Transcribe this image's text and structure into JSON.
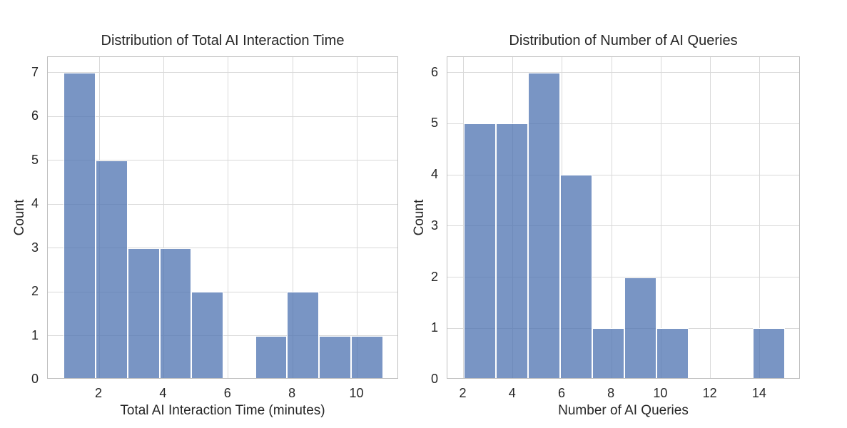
{
  "figure": {
    "background_color": "#ffffff"
  },
  "style": {
    "bar_fill_color": "#4C72B0",
    "bar_fill_alpha": 0.75,
    "bar_fill_rgba": "rgba(76,114,176,0.75)",
    "bar_edge_color": "#ffffff",
    "grid_color": "#d9d9d9",
    "spine_color": "#bfbfbf",
    "text_color": "#262626"
  },
  "chart_data": [
    {
      "type": "bar",
      "subtype": "histogram",
      "title": "Distribution of Total AI Interaction Time",
      "xlabel": "Total AI Interaction Time (minutes)",
      "ylabel": "Count",
      "bin_edges": [
        0.9,
        1.89,
        2.88,
        3.87,
        4.86,
        5.85,
        6.84,
        7.83,
        8.82,
        9.81,
        10.8
      ],
      "counts": [
        7,
        5,
        3,
        3,
        2,
        0,
        1,
        2,
        1,
        1
      ],
      "xticks": [
        2,
        4,
        6,
        8,
        10
      ],
      "yticks": [
        0,
        1,
        2,
        3,
        4,
        5,
        6,
        7
      ],
      "xlim": [
        0.405,
        11.295
      ],
      "ylim": [
        0,
        7.35
      ],
      "grid": true,
      "legend": null
    },
    {
      "type": "bar",
      "subtype": "histogram",
      "title": "Distribution of Number of AI Queries",
      "xlabel": "Number of AI Queries",
      "ylabel": "Count",
      "bin_edges": [
        2.0,
        3.3,
        4.6,
        5.9,
        7.2,
        8.5,
        9.8,
        11.1,
        12.4,
        13.7,
        15.0
      ],
      "counts": [
        5,
        5,
        6,
        4,
        1,
        2,
        1,
        0,
        0,
        1
      ],
      "xticks": [
        2,
        4,
        6,
        8,
        10,
        12,
        14
      ],
      "yticks": [
        0,
        1,
        2,
        3,
        4,
        5,
        6
      ],
      "xlim": [
        1.35,
        15.65
      ],
      "ylim": [
        0,
        6.3
      ],
      "grid": true,
      "legend": null
    }
  ]
}
